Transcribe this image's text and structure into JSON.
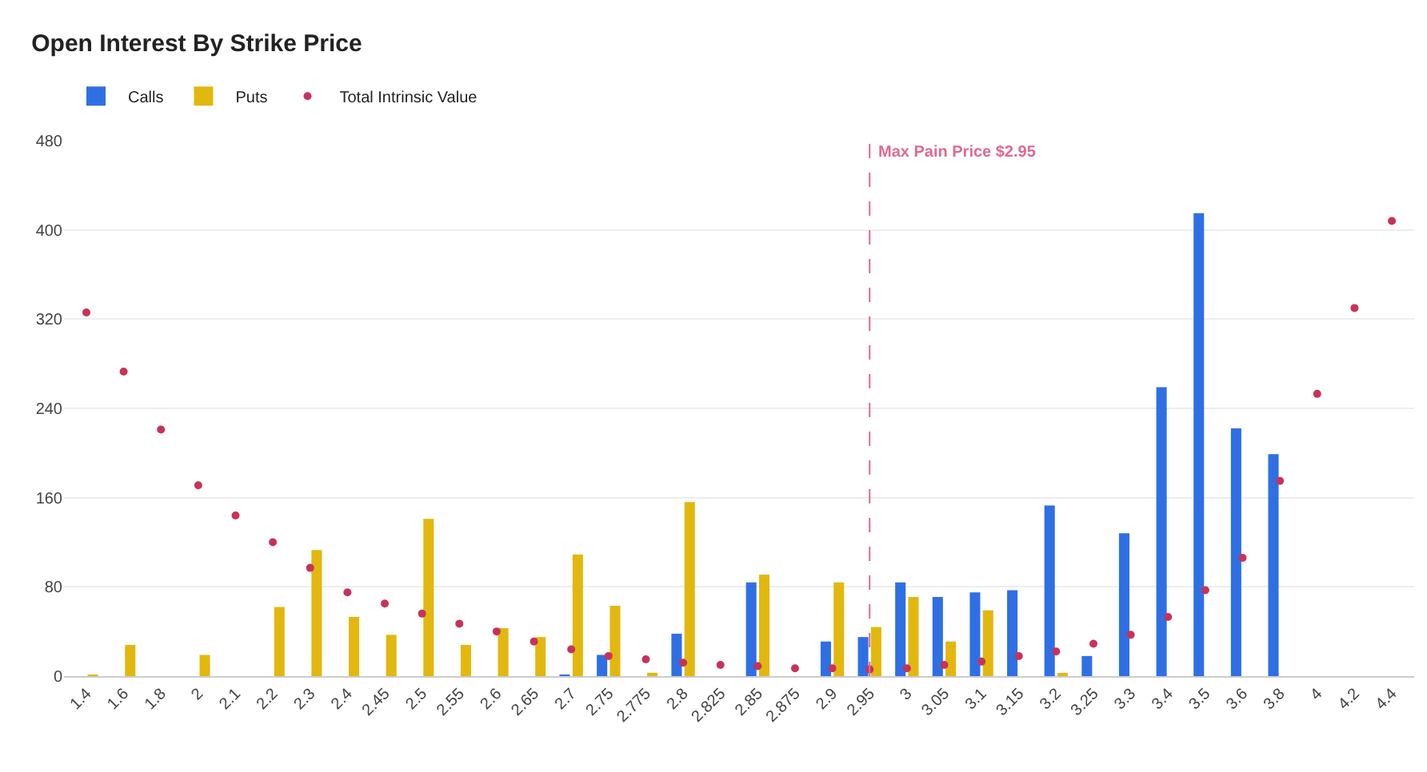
{
  "chart_data": {
    "type": "bar",
    "title": "Open Interest By Strike Price",
    "categories": [
      "1.4",
      "1.6",
      "1.8",
      "2",
      "2.1",
      "2.2",
      "2.3",
      "2.4",
      "2.45",
      "2.5",
      "2.55",
      "2.6",
      "2.65",
      "2.7",
      "2.75",
      "2.775",
      "2.8",
      "2.825",
      "2.85",
      "2.875",
      "2.9",
      "2.95",
      "3",
      "3.05",
      "3.1",
      "3.15",
      "3.2",
      "3.25",
      "3.3",
      "3.4",
      "3.5",
      "3.6",
      "3.8",
      "4",
      "4.2",
      "4.4"
    ],
    "series": [
      {
        "name": "Calls",
        "color": "#2f6fe4",
        "values": [
          null,
          null,
          null,
          null,
          null,
          null,
          null,
          null,
          null,
          null,
          null,
          null,
          null,
          1,
          19,
          null,
          38,
          null,
          84,
          null,
          31,
          35,
          84,
          71,
          75,
          77,
          153,
          18,
          128,
          259,
          415,
          222,
          199,
          null,
          null,
          null
        ]
      },
      {
        "name": "Puts",
        "color": "#e2b80f",
        "values": [
          1,
          28,
          null,
          19,
          null,
          62,
          113,
          53,
          37,
          141,
          28,
          43,
          35,
          109,
          63,
          3,
          156,
          null,
          91,
          null,
          84,
          44,
          71,
          31,
          59,
          null,
          2,
          null,
          null,
          null,
          null,
          null,
          null,
          null,
          null,
          null
        ]
      },
      {
        "name": "Total Intrinsic Value",
        "type": "scatter",
        "marker": "circle",
        "color": "#c8325a",
        "values": [
          326,
          273,
          221,
          171,
          144,
          120,
          97,
          75,
          65,
          56,
          47,
          40,
          31,
          24,
          18,
          15,
          12,
          10,
          9,
          7,
          7,
          6,
          7,
          10,
          13,
          18,
          22,
          29,
          37,
          53,
          77,
          106,
          175,
          253,
          330,
          408
        ]
      }
    ],
    "ylim": [
      0,
      480
    ],
    "yticks": [
      0,
      80,
      160,
      240,
      320,
      400,
      480
    ],
    "grid": "y",
    "legend": "top left",
    "ref_lines": [
      {
        "axis": "x",
        "value": "2.95",
        "label": "Max Pain Price $2.95",
        "color": "#e06a92",
        "line_style": "dashed"
      }
    ]
  }
}
